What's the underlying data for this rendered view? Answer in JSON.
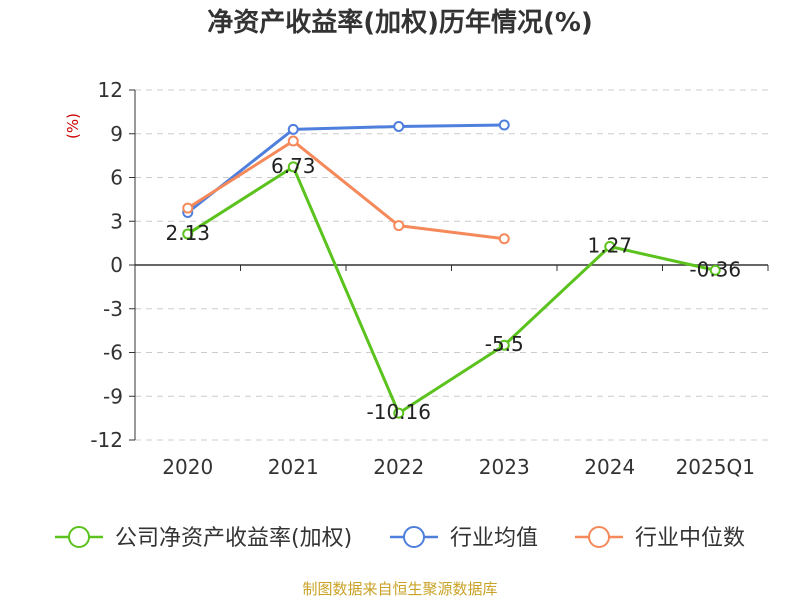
{
  "chart_data": {
    "type": "line",
    "title": "净资产收益率(加权)历年情况(%)",
    "ylabel": "(%)",
    "categories": [
      "2020",
      "2021",
      "2022",
      "2023",
      "2024",
      "2025Q1"
    ],
    "yticks": [
      "12",
      "9",
      "6",
      "3",
      "0",
      "-3",
      "-6",
      "-9",
      "-12"
    ],
    "ylim": [
      -12,
      12
    ],
    "grid": true,
    "legend_position": "bottom",
    "series": [
      {
        "name": "公司净资产收益率(加权)",
        "color": "#5bc21e",
        "values": [
          2.13,
          6.73,
          -10.16,
          -5.5,
          1.27,
          -0.36
        ],
        "labels": [
          "2.13",
          "6.73",
          "-10.16",
          "-5.5",
          "1.27",
          "-0.36"
        ]
      },
      {
        "name": "行业均值",
        "color": "#4f7fdc",
        "values": [
          3.6,
          9.3,
          9.5,
          9.6,
          null,
          null
        ]
      },
      {
        "name": "行业中位数",
        "color": "#f5895a",
        "values": [
          3.9,
          8.5,
          2.7,
          1.8,
          null,
          null
        ]
      }
    ]
  },
  "source": "制图数据来自恒生聚源数据库"
}
